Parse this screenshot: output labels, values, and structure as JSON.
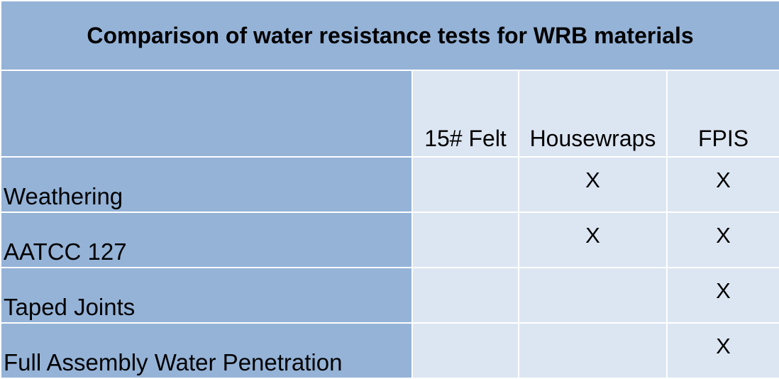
{
  "title": "Comparison of water resistance tests for WRB materials",
  "columns": [
    "15# Felt",
    "Housewraps",
    "FPIS"
  ],
  "rows": [
    {
      "label": "Weathering",
      "marks": [
        "",
        "X",
        "X"
      ]
    },
    {
      "label": "AATCC 127",
      "marks": [
        "",
        "X",
        "X"
      ]
    },
    {
      "label": "Taped Joints",
      "marks": [
        "",
        "",
        "X"
      ]
    },
    {
      "label": "Full Assembly Water Penetration",
      "marks": [
        "",
        "",
        "X"
      ]
    }
  ],
  "colors": {
    "dark_cell": "#95b3d7",
    "light_cell": "#dce6f2",
    "grid_line": "#ffffff"
  }
}
